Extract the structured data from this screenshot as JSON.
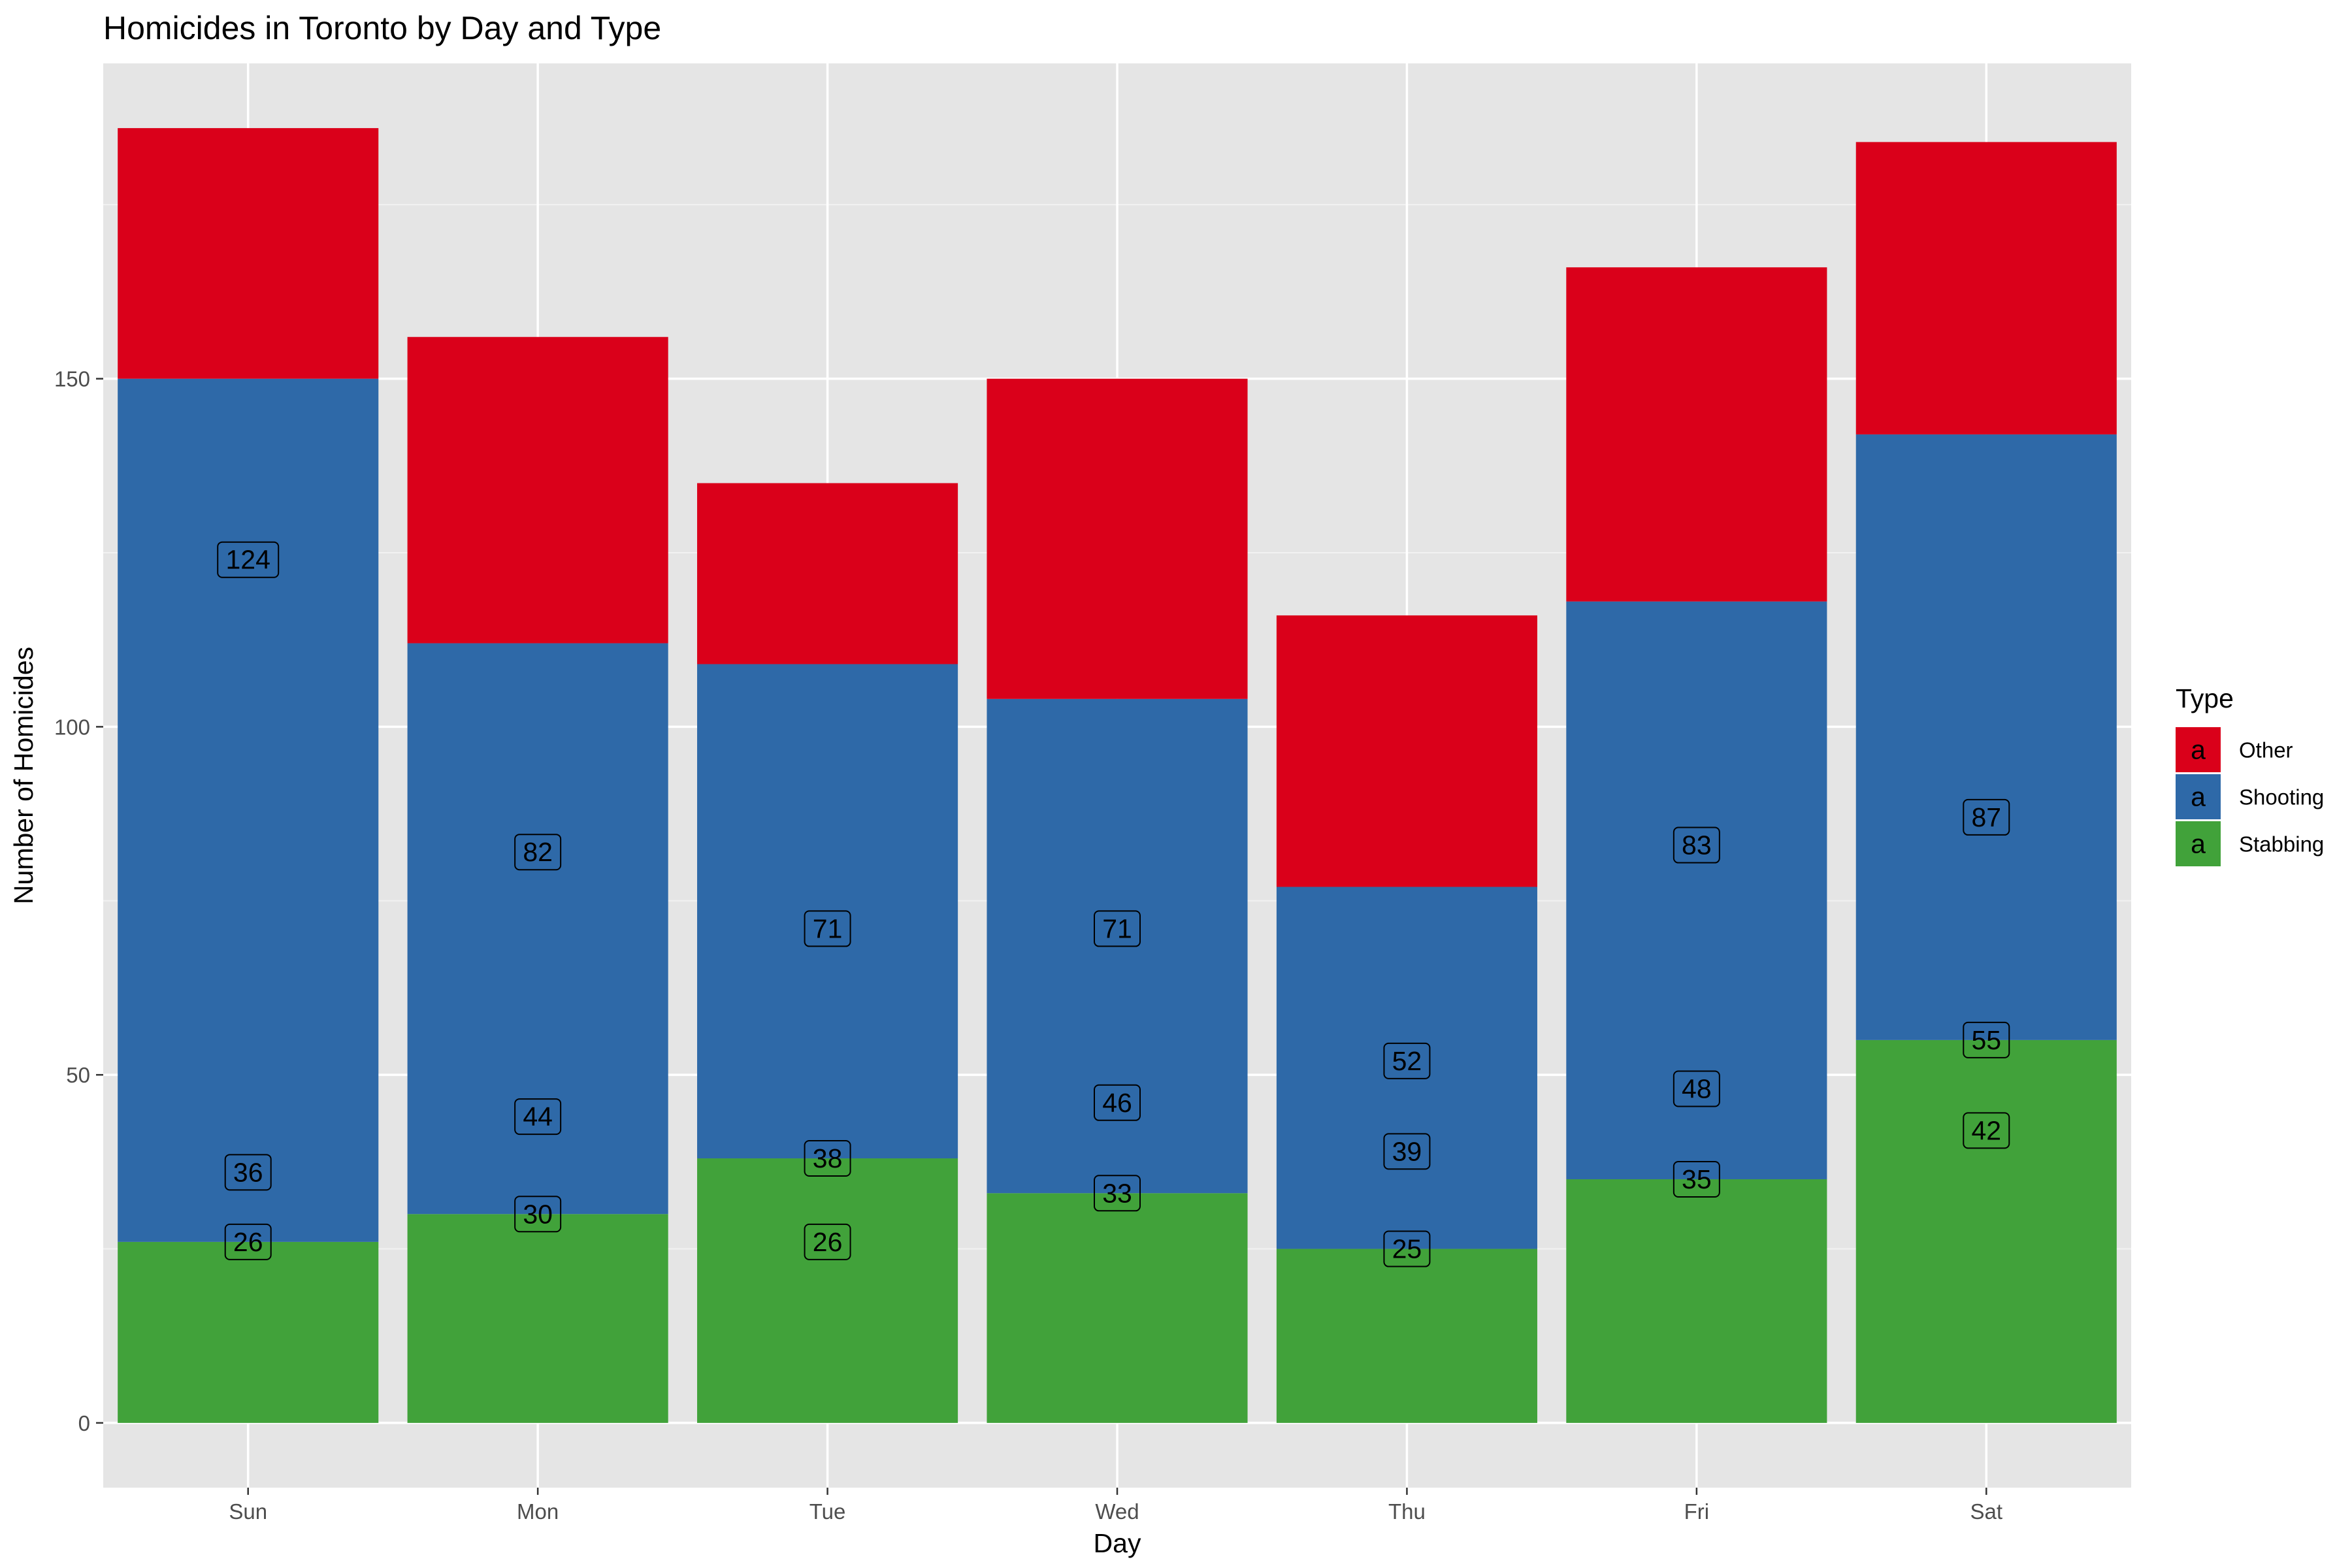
{
  "chart_data": {
    "type": "bar",
    "stacked": true,
    "title": "Homicides in Toronto by Day and Type",
    "xlabel": "Day",
    "ylabel": "Number of Homicides",
    "categories": [
      "Sun",
      "Mon",
      "Tue",
      "Wed",
      "Thu",
      "Fri",
      "Sat"
    ],
    "series": [
      {
        "name": "Stabbing",
        "color": "#41A23A",
        "values": [
          26,
          30,
          38,
          33,
          25,
          35,
          55
        ]
      },
      {
        "name": "Shooting",
        "color": "#2E69A8",
        "values": [
          124,
          82,
          71,
          71,
          52,
          83,
          87
        ]
      },
      {
        "name": "Other",
        "color": "#DA001A",
        "values": [
          36,
          44,
          26,
          46,
          39,
          48,
          42
        ]
      }
    ],
    "yticks": [
      0,
      50,
      100,
      150
    ],
    "ylim": [
      -9.3,
      195.3
    ],
    "grid": true,
    "legend": {
      "title": "Type",
      "placement": "right",
      "key_glyph": "a",
      "order": [
        "Other",
        "Shooting",
        "Stabbing"
      ]
    }
  },
  "colors": {
    "panel_background": "#E5E5E5",
    "grid_major": "#FFFFFF",
    "grid_minor": "#F2F2F2",
    "data_label_fill": "#FFFFFF",
    "tick_text": "#4D4D4D"
  }
}
